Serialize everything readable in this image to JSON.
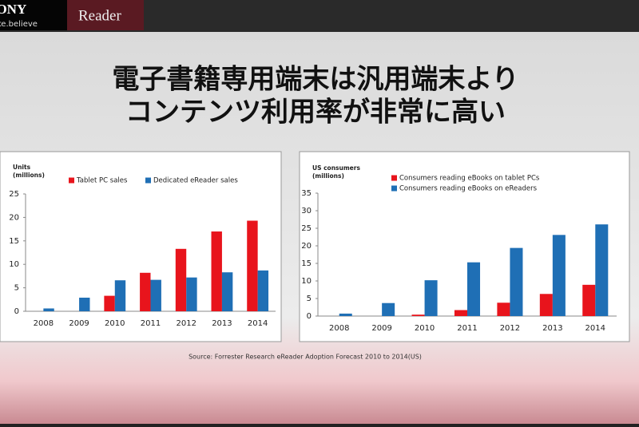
{
  "header": {
    "brand": "SONY",
    "tagline": "make.believe",
    "product": "Reader"
  },
  "title": [
    "電子書籍専用端末は汎用端末より",
    "コンテンツ利用率が非常に高い"
  ],
  "source": "Source: Forrester Research eReader Adoption Forecast 2010 to 2014(US)",
  "chart_data": [
    {
      "type": "bar",
      "y_label": [
        "Units",
        "(millions)"
      ],
      "categories": [
        "2008",
        "2009",
        "2010",
        "2011",
        "2012",
        "2013",
        "2014"
      ],
      "series": [
        {
          "name": "Tablet PC sales",
          "color": "#e8141c",
          "values": [
            0,
            0,
            3.3,
            8.2,
            13.3,
            17,
            19.3
          ]
        },
        {
          "name": "Dedicated eReader sales",
          "color": "#1f6fb5",
          "values": [
            0.6,
            2.9,
            6.6,
            6.7,
            7.2,
            8.3,
            8.7
          ]
        }
      ],
      "ylim": [
        0,
        25
      ],
      "yticks": [
        0,
        5,
        10,
        15,
        20,
        25
      ],
      "legend": "top",
      "grid": false
    },
    {
      "type": "bar",
      "y_label": [
        "US consumers",
        "(millions)"
      ],
      "categories": [
        "2008",
        "2009",
        "2010",
        "2011",
        "2012",
        "2013",
        "2014"
      ],
      "series": [
        {
          "name": "Consumers reading eBooks on tablet PCs",
          "color": "#e8141c",
          "values": [
            0,
            0,
            0.4,
            1.7,
            3.8,
            6.3,
            8.9
          ]
        },
        {
          "name": "Consumers reading eBooks on eReaders",
          "color": "#1f6fb5",
          "values": [
            0.7,
            3.7,
            10.2,
            15.3,
            19.4,
            23.1,
            26.1
          ]
        }
      ],
      "ylim": [
        0,
        35
      ],
      "yticks": [
        0,
        5,
        10,
        15,
        20,
        25,
        30,
        35
      ],
      "legend": "top",
      "grid": false
    }
  ]
}
